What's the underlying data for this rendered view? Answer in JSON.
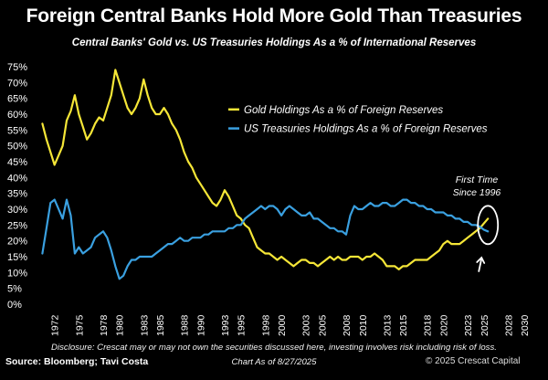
{
  "title": "Foreign Central Banks Hold More Gold Than Treasuries",
  "subtitle": "Central Banks' Gold vs. US Treasuries Holdings As a % of International Reserves",
  "footer": {
    "disclaimer": "Disclosure: Crescat may or may not own the securities discussed here, investing involves risk including risk of loss.",
    "source": "Source: Bloomberg; Tavi Costa",
    "as_of": "Chart As of 8/27/2025",
    "copyright": "© 2025 Crescat Capital"
  },
  "annotation": {
    "line1": "First Time",
    "line2": "Since 1996"
  },
  "colors": {
    "gold": "#f5e637",
    "treasuries": "#3aa0e0",
    "background": "#000000",
    "text": "#ffffff"
  },
  "chart_data": {
    "type": "line",
    "title": "Foreign Central Banks Hold More Gold Than Treasuries",
    "subtitle": "Central Banks' Gold vs. US Treasuries Holdings As a % of International Reserves",
    "xlabel": "",
    "ylabel": "",
    "xlim": [
      1970,
      2031
    ],
    "ylim": [
      0,
      75
    ],
    "y_ticks": [
      0,
      5,
      10,
      15,
      20,
      25,
      30,
      35,
      40,
      45,
      50,
      55,
      60,
      65,
      70,
      75
    ],
    "y_tick_labels": [
      "0%",
      "5%",
      "10%",
      "15%",
      "20%",
      "25%",
      "30%",
      "35%",
      "40%",
      "45%",
      "50%",
      "55%",
      "60%",
      "65%",
      "70%",
      "75%"
    ],
    "x_ticks": [
      1972,
      1975,
      1978,
      1980,
      1983,
      1985,
      1988,
      1990,
      1993,
      1995,
      1998,
      2000,
      2003,
      2005,
      2008,
      2010,
      2013,
      2015,
      2018,
      2020,
      2023,
      2025,
      2028,
      2030
    ],
    "x_tick_labels": [
      "1972",
      "1975",
      "1978",
      "1980",
      "1983",
      "1985",
      "1988",
      "1990",
      "1993",
      "1995",
      "1998",
      "2000",
      "2003",
      "2005",
      "2008",
      "2010",
      "2013",
      "2015",
      "2018",
      "2020",
      "2023",
      "2025",
      "2028",
      "2030"
    ],
    "grid": false,
    "legend_position": "top-right",
    "series": [
      {
        "name": "Gold Holdings As a % of Foreign Reserves",
        "color": "#f5e637",
        "points": [
          [
            1970.5,
            57
          ],
          [
            1971,
            52
          ],
          [
            1971.5,
            48
          ],
          [
            1972,
            44
          ],
          [
            1972.5,
            47
          ],
          [
            1973,
            50
          ],
          [
            1973.5,
            58
          ],
          [
            1974,
            61
          ],
          [
            1974.5,
            66
          ],
          [
            1975,
            60
          ],
          [
            1975.5,
            56
          ],
          [
            1976,
            52
          ],
          [
            1976.5,
            54
          ],
          [
            1977,
            57
          ],
          [
            1977.5,
            59
          ],
          [
            1978,
            58
          ],
          [
            1978.5,
            62
          ],
          [
            1979,
            66
          ],
          [
            1979.5,
            74
          ],
          [
            1980,
            70
          ],
          [
            1980.5,
            66
          ],
          [
            1981,
            62
          ],
          [
            1981.5,
            60
          ],
          [
            1982,
            62
          ],
          [
            1982.5,
            65
          ],
          [
            1983,
            71
          ],
          [
            1983.5,
            66
          ],
          [
            1984,
            62
          ],
          [
            1984.5,
            60
          ],
          [
            1985,
            60
          ],
          [
            1985.5,
            62
          ],
          [
            1986,
            60
          ],
          [
            1986.5,
            57
          ],
          [
            1987,
            55
          ],
          [
            1987.5,
            52
          ],
          [
            1988,
            48
          ],
          [
            1988.5,
            45
          ],
          [
            1989,
            43
          ],
          [
            1989.5,
            40
          ],
          [
            1990,
            38
          ],
          [
            1990.5,
            36
          ],
          [
            1991,
            34
          ],
          [
            1991.5,
            32
          ],
          [
            1992,
            31
          ],
          [
            1992.5,
            33
          ],
          [
            1993,
            36
          ],
          [
            1993.5,
            34
          ],
          [
            1994,
            31
          ],
          [
            1994.5,
            28
          ],
          [
            1995,
            27
          ],
          [
            1995.5,
            25
          ],
          [
            1996,
            24
          ],
          [
            1996.5,
            21
          ],
          [
            1997,
            18
          ],
          [
            1997.5,
            17
          ],
          [
            1998,
            16
          ],
          [
            1998.5,
            16
          ],
          [
            1999,
            15
          ],
          [
            1999.5,
            14
          ],
          [
            2000,
            15
          ],
          [
            2000.5,
            14
          ],
          [
            2001,
            13
          ],
          [
            2001.5,
            12
          ],
          [
            2002,
            13
          ],
          [
            2002.5,
            14
          ],
          [
            2003,
            14
          ],
          [
            2003.5,
            13
          ],
          [
            2004,
            13
          ],
          [
            2004.5,
            12
          ],
          [
            2005,
            13
          ],
          [
            2005.5,
            14
          ],
          [
            2006,
            15
          ],
          [
            2006.5,
            14
          ],
          [
            2007,
            15
          ],
          [
            2007.5,
            14
          ],
          [
            2008,
            14
          ],
          [
            2008.5,
            15
          ],
          [
            2009,
            15
          ],
          [
            2009.5,
            15
          ],
          [
            2010,
            14
          ],
          [
            2010.5,
            15
          ],
          [
            2011,
            15
          ],
          [
            2011.5,
            16
          ],
          [
            2012,
            15
          ],
          [
            2012.5,
            14
          ],
          [
            2013,
            12
          ],
          [
            2013.5,
            12
          ],
          [
            2014,
            12
          ],
          [
            2014.5,
            11
          ],
          [
            2015,
            12
          ],
          [
            2015.5,
            12
          ],
          [
            2016,
            13
          ],
          [
            2016.5,
            14
          ],
          [
            2017,
            14
          ],
          [
            2017.5,
            14
          ],
          [
            2018,
            14
          ],
          [
            2018.5,
            15
          ],
          [
            2019,
            16
          ],
          [
            2019.5,
            17
          ],
          [
            2020,
            19
          ],
          [
            2020.5,
            20
          ],
          [
            2021,
            19
          ],
          [
            2021.5,
            19
          ],
          [
            2022,
            19
          ],
          [
            2022.5,
            20
          ],
          [
            2023,
            21
          ],
          [
            2023.5,
            22
          ],
          [
            2024,
            23
          ],
          [
            2024.5,
            24
          ],
          [
            2025,
            25.5
          ],
          [
            2025.5,
            27
          ]
        ]
      },
      {
        "name": "US Treasuries Holdings As a % of Foreign Reserves",
        "color": "#3aa0e0",
        "points": [
          [
            1970.5,
            16
          ],
          [
            1971,
            24
          ],
          [
            1971.5,
            32
          ],
          [
            1972,
            33
          ],
          [
            1972.5,
            30
          ],
          [
            1973,
            27
          ],
          [
            1973.5,
            33
          ],
          [
            1974,
            28
          ],
          [
            1974.5,
            16
          ],
          [
            1975,
            18
          ],
          [
            1975.5,
            16
          ],
          [
            1976,
            17
          ],
          [
            1976.5,
            18
          ],
          [
            1977,
            21
          ],
          [
            1977.5,
            22
          ],
          [
            1978,
            23
          ],
          [
            1978.5,
            21
          ],
          [
            1979,
            17
          ],
          [
            1979.5,
            12
          ],
          [
            1980,
            8
          ],
          [
            1980.5,
            9
          ],
          [
            1981,
            12
          ],
          [
            1981.5,
            14
          ],
          [
            1982,
            14
          ],
          [
            1982.5,
            15
          ],
          [
            1983,
            15
          ],
          [
            1983.5,
            15
          ],
          [
            1984,
            15
          ],
          [
            1984.5,
            16
          ],
          [
            1985,
            17
          ],
          [
            1985.5,
            18
          ],
          [
            1986,
            19
          ],
          [
            1986.5,
            19
          ],
          [
            1987,
            20
          ],
          [
            1987.5,
            21
          ],
          [
            1988,
            20
          ],
          [
            1988.5,
            20
          ],
          [
            1989,
            21
          ],
          [
            1989.5,
            21
          ],
          [
            1990,
            21
          ],
          [
            1990.5,
            22
          ],
          [
            1991,
            22
          ],
          [
            1991.5,
            23
          ],
          [
            1992,
            23
          ],
          [
            1992.5,
            23
          ],
          [
            1993,
            23
          ],
          [
            1993.5,
            24
          ],
          [
            1994,
            24
          ],
          [
            1994.5,
            25
          ],
          [
            1995,
            25
          ],
          [
            1995.5,
            27
          ],
          [
            1996,
            28
          ],
          [
            1996.5,
            29
          ],
          [
            1997,
            30
          ],
          [
            1997.5,
            31
          ],
          [
            1998,
            30
          ],
          [
            1998.5,
            31
          ],
          [
            1999,
            31
          ],
          [
            1999.5,
            30
          ],
          [
            2000,
            28
          ],
          [
            2000.5,
            30
          ],
          [
            2001,
            31
          ],
          [
            2001.5,
            30
          ],
          [
            2002,
            29
          ],
          [
            2002.5,
            28
          ],
          [
            2003,
            28
          ],
          [
            2003.5,
            29
          ],
          [
            2004,
            27
          ],
          [
            2004.5,
            27
          ],
          [
            2005,
            26
          ],
          [
            2005.5,
            25
          ],
          [
            2006,
            24
          ],
          [
            2006.5,
            24
          ],
          [
            2007,
            23
          ],
          [
            2007.5,
            23
          ],
          [
            2008,
            22
          ],
          [
            2008.5,
            28
          ],
          [
            2009,
            31
          ],
          [
            2009.5,
            30
          ],
          [
            2010,
            30
          ],
          [
            2010.5,
            31
          ],
          [
            2011,
            32
          ],
          [
            2011.5,
            31
          ],
          [
            2012,
            31
          ],
          [
            2012.5,
            32
          ],
          [
            2013,
            32
          ],
          [
            2013.5,
            31
          ],
          [
            2014,
            31
          ],
          [
            2014.5,
            32
          ],
          [
            2015,
            33
          ],
          [
            2015.5,
            33
          ],
          [
            2016,
            32
          ],
          [
            2016.5,
            32
          ],
          [
            2017,
            31
          ],
          [
            2017.5,
            31
          ],
          [
            2018,
            30
          ],
          [
            2018.5,
            30
          ],
          [
            2019,
            29
          ],
          [
            2019.5,
            29
          ],
          [
            2020,
            29
          ],
          [
            2020.5,
            28
          ],
          [
            2021,
            28
          ],
          [
            2021.5,
            27
          ],
          [
            2022,
            27
          ],
          [
            2022.5,
            26
          ],
          [
            2023,
            26
          ],
          [
            2023.5,
            25
          ],
          [
            2024,
            25
          ],
          [
            2024.5,
            24.5
          ],
          [
            2025,
            23.5
          ],
          [
            2025.5,
            23
          ]
        ]
      }
    ]
  }
}
